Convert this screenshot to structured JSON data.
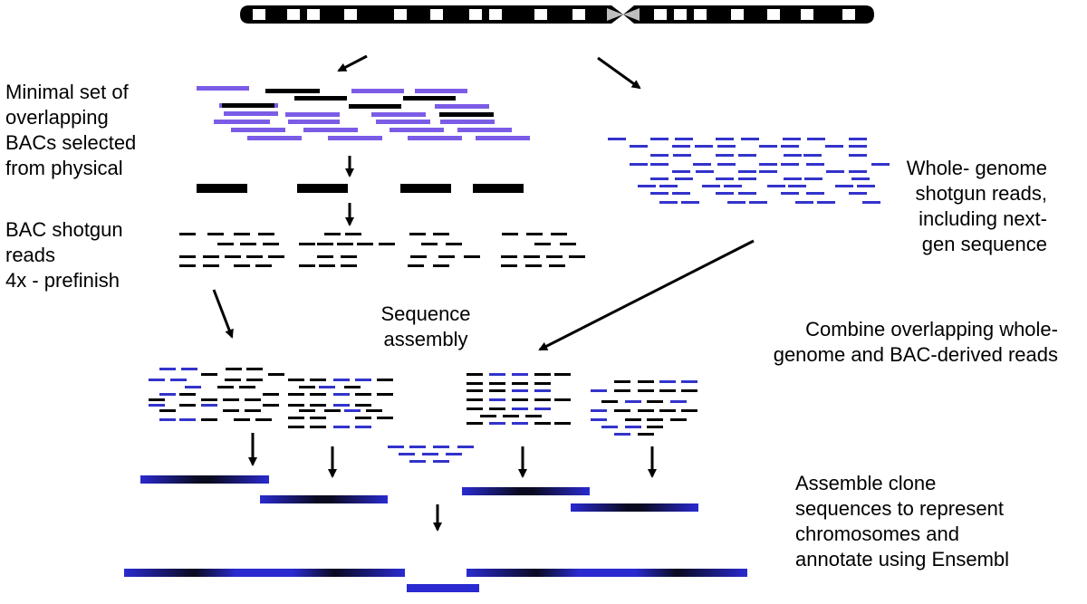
{
  "labels": {
    "bac_selection": [
      "Minimal set of",
      "overlapping",
      "BACs selected",
      "from physical"
    ],
    "bac_shotgun": [
      "BAC shotgun",
      "reads",
      "4x - prefinish"
    ],
    "wgs": [
      "Whole- genome",
      "shotgun reads,",
      "including next-",
      "gen sequence"
    ],
    "sequence_assembly": [
      "Sequence",
      "assembly"
    ],
    "combine": [
      "Combine overlapping whole-",
      "genome and BAC-derived reads"
    ],
    "assemble_clones": [
      "Assemble clone",
      "sequences to represent",
      "chromosomes and",
      "annotate using Ensembl"
    ]
  },
  "colors": {
    "bac_read": "#7B5CE6",
    "black_read": "#000000",
    "wgs_read": "#3333CC",
    "contig_blue": "#2A2AD0",
    "arrow": "#000000",
    "centromere": "#BEBEBE"
  },
  "icons": {
    "chromosome": "chromosome-ideogram",
    "arrow": "arrow-icon"
  }
}
